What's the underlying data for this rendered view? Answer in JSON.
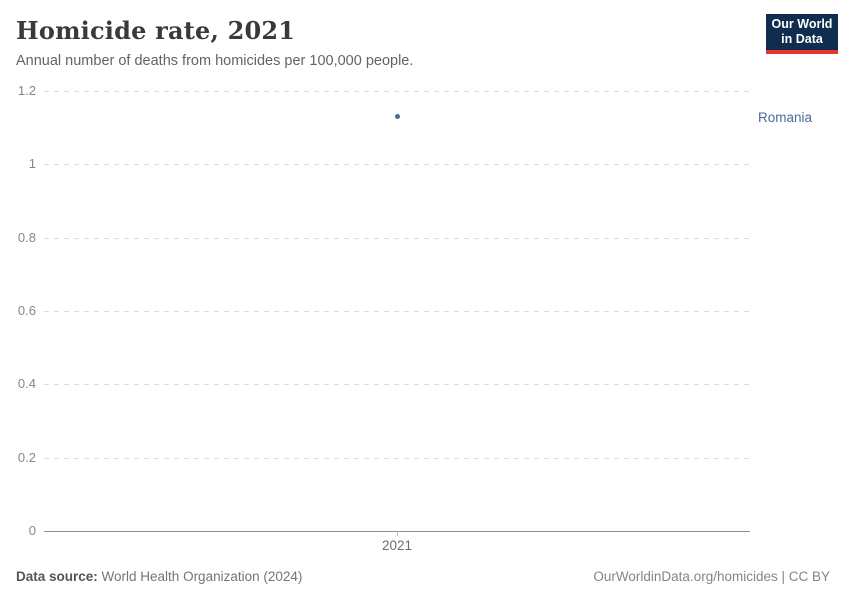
{
  "header": {
    "title": "Homicide rate, 2021",
    "subtitle": "Annual number of deaths from homicides per 100,000 people.",
    "logo": {
      "line1": "Our World",
      "line2": "in Data"
    }
  },
  "chart_data": {
    "type": "scatter",
    "title": "Homicide rate, 2021",
    "subtitle": "Annual number of deaths from homicides per 100,000 people.",
    "series": [
      {
        "name": "Romania",
        "x": [
          2021
        ],
        "y": [
          1.13
        ],
        "color": "#4c6a9c"
      }
    ],
    "xlabel": "",
    "ylabel": "",
    "x_tick_labels": [
      "2021"
    ],
    "y_ticks": [
      {
        "value": 0,
        "label": "0"
      },
      {
        "value": 0.2,
        "label": "0.2"
      },
      {
        "value": 0.4,
        "label": "0.4"
      },
      {
        "value": 0.6,
        "label": "0.6"
      },
      {
        "value": 0.8,
        "label": "0.8"
      },
      {
        "value": 1,
        "label": "1"
      },
      {
        "value": 1.2,
        "label": "1.2"
      }
    ],
    "ylim": [
      0,
      1.2
    ],
    "grid": "horizontal-dashed",
    "legend_position": "right-of-point"
  },
  "entity": {
    "label": "Romania",
    "value": 1.13
  },
  "footer": {
    "source_label": "Data source:",
    "source_value": " World Health Organization (2024)",
    "credit": "OurWorldinData.org/homicides | CC BY"
  },
  "colors": {
    "accent": "#4c6a9c",
    "logo_bg": "#0f2d4e",
    "logo_red": "#e5332d",
    "grid": "#dcdcdc",
    "axis": "#8f8f8f",
    "tick_text": "#878787",
    "title_text": "#3a3a3a",
    "subtitle_text": "#636363"
  }
}
